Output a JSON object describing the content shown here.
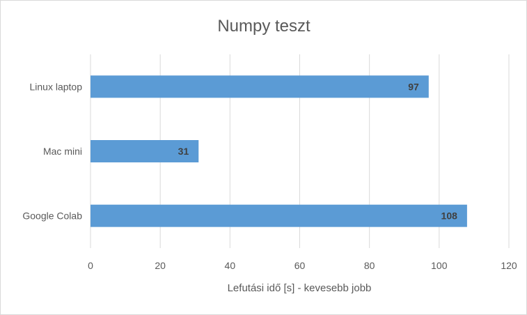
{
  "chart_data": {
    "type": "bar",
    "orientation": "horizontal",
    "title": "Numpy teszt",
    "xlabel": "Lefutási idő [s] - kevesebb jobb",
    "ylabel": "",
    "categories": [
      "Linux laptop",
      "Mac mini",
      "Google Colab"
    ],
    "values": [
      97,
      31,
      108
    ],
    "xlim": [
      0,
      120
    ],
    "xticks": [
      "0",
      "20",
      "40",
      "60",
      "80",
      "100",
      "120"
    ],
    "data_labels": [
      "97",
      "31",
      "108"
    ],
    "grid": true,
    "legend": "none",
    "bar_color": "#5b9bd5"
  }
}
